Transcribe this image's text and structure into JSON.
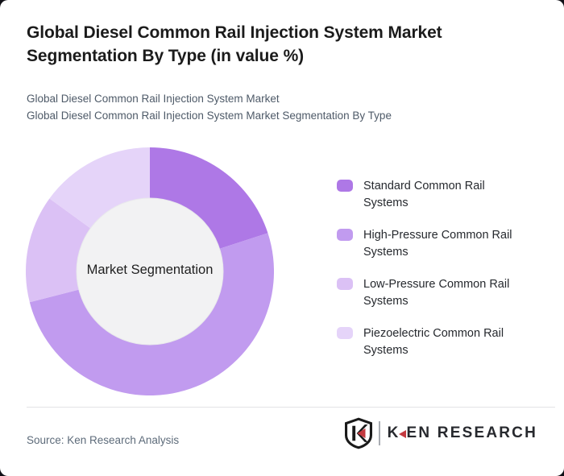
{
  "page": {
    "background_color": "#101016",
    "card_color": "#ffffff"
  },
  "header": {
    "title": "Global Diesel Common Rail Injection System Market Segmentation By Type (in value %)",
    "subtitle_line1": "Global Diesel Common Rail Injection System Market",
    "subtitle_line2": "Global Diesel Common Rail Injection System Market Segmentation By Type"
  },
  "chart_data": {
    "type": "pie",
    "style": "donut",
    "title": "Global Diesel Common Rail Injection System Market Segmentation By Type (in value %)",
    "center_label": "Market Segmentation",
    "unit": "% of value",
    "start_angle_deg": 0,
    "direction": "clockwise",
    "legend_position": "right",
    "hole_color": "#f2f2f3",
    "series": [
      {
        "name": "Standard Common Rail Systems",
        "value": 20,
        "color": "#ae78e6"
      },
      {
        "name": "High-Pressure Common Rail Systems",
        "value": 51,
        "color": "#c19bef"
      },
      {
        "name": "Low-Pressure Common Rail Systems",
        "value": 14,
        "color": "#dbc1f5"
      },
      {
        "name": "Piezoelectric Common Rail Systems",
        "value": 15,
        "color": "#e5d4f9"
      }
    ]
  },
  "footer": {
    "source": "Source: Ken Research Analysis",
    "logo_text_k": "K",
    "logo_text_rest": "EN RESEARCH",
    "logo_red": "#c3393f"
  }
}
